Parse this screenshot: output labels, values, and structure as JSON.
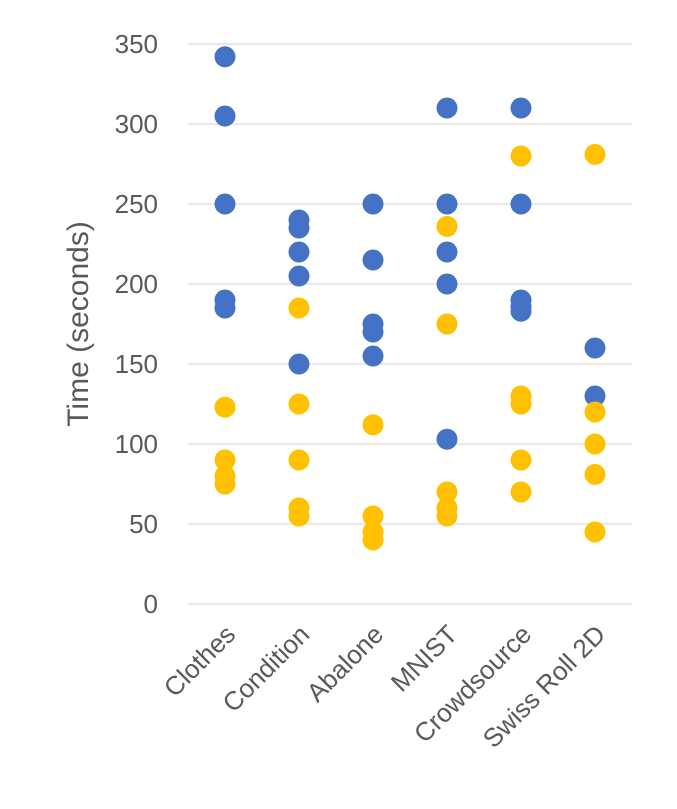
{
  "chart_data": {
    "type": "scatter",
    "title": "",
    "xlabel": "",
    "ylabel": "Time (seconds)",
    "ylim": [
      0,
      350
    ],
    "ytick_step": 50,
    "grid": true,
    "legend": "none",
    "categories": [
      "Clothes",
      "Condition",
      "Abalone",
      "MNIST",
      "Crowdsource",
      "Swiss Roll 2D"
    ],
    "series": [
      {
        "color": "#4472C4",
        "points": [
          {
            "x": "Clothes",
            "y": 342
          },
          {
            "x": "Clothes",
            "y": 305
          },
          {
            "x": "Clothes",
            "y": 250
          },
          {
            "x": "Clothes",
            "y": 190
          },
          {
            "x": "Clothes",
            "y": 185
          },
          {
            "x": "Condition",
            "y": 240
          },
          {
            "x": "Condition",
            "y": 235
          },
          {
            "x": "Condition",
            "y": 220
          },
          {
            "x": "Condition",
            "y": 205
          },
          {
            "x": "Condition",
            "y": 150
          },
          {
            "x": "Abalone",
            "y": 250
          },
          {
            "x": "Abalone",
            "y": 215
          },
          {
            "x": "Abalone",
            "y": 175
          },
          {
            "x": "Abalone",
            "y": 170
          },
          {
            "x": "Abalone",
            "y": 155
          },
          {
            "x": "MNIST",
            "y": 310
          },
          {
            "x": "MNIST",
            "y": 250
          },
          {
            "x": "MNIST",
            "y": 220
          },
          {
            "x": "MNIST",
            "y": 200
          },
          {
            "x": "MNIST",
            "y": 103
          },
          {
            "x": "Crowdsource",
            "y": 310
          },
          {
            "x": "Crowdsource",
            "y": 250
          },
          {
            "x": "Crowdsource",
            "y": 190
          },
          {
            "x": "Crowdsource",
            "y": 186
          },
          {
            "x": "Crowdsource",
            "y": 183
          },
          {
            "x": "Swiss Roll 2D",
            "y": 160
          },
          {
            "x": "Swiss Roll 2D",
            "y": 130
          }
        ]
      },
      {
        "color": "#FFC000",
        "points": [
          {
            "x": "Clothes",
            "y": 123
          },
          {
            "x": "Clothes",
            "y": 90
          },
          {
            "x": "Clothes",
            "y": 80
          },
          {
            "x": "Clothes",
            "y": 75
          },
          {
            "x": "Condition",
            "y": 185
          },
          {
            "x": "Condition",
            "y": 125
          },
          {
            "x": "Condition",
            "y": 90
          },
          {
            "x": "Condition",
            "y": 60
          },
          {
            "x": "Condition",
            "y": 55
          },
          {
            "x": "Abalone",
            "y": 112
          },
          {
            "x": "Abalone",
            "y": 55
          },
          {
            "x": "Abalone",
            "y": 45
          },
          {
            "x": "Abalone",
            "y": 40
          },
          {
            "x": "MNIST",
            "y": 236
          },
          {
            "x": "MNIST",
            "y": 175
          },
          {
            "x": "MNIST",
            "y": 70
          },
          {
            "x": "MNIST",
            "y": 60
          },
          {
            "x": "MNIST",
            "y": 55
          },
          {
            "x": "Crowdsource",
            "y": 280
          },
          {
            "x": "Crowdsource",
            "y": 130
          },
          {
            "x": "Crowdsource",
            "y": 125
          },
          {
            "x": "Crowdsource",
            "y": 90
          },
          {
            "x": "Crowdsource",
            "y": 70
          },
          {
            "x": "Swiss Roll 2D",
            "y": 281
          },
          {
            "x": "Swiss Roll 2D",
            "y": 120
          },
          {
            "x": "Swiss Roll 2D",
            "y": 100
          },
          {
            "x": "Swiss Roll 2D",
            "y": 81
          },
          {
            "x": "Swiss Roll 2D",
            "y": 45
          }
        ]
      }
    ]
  }
}
